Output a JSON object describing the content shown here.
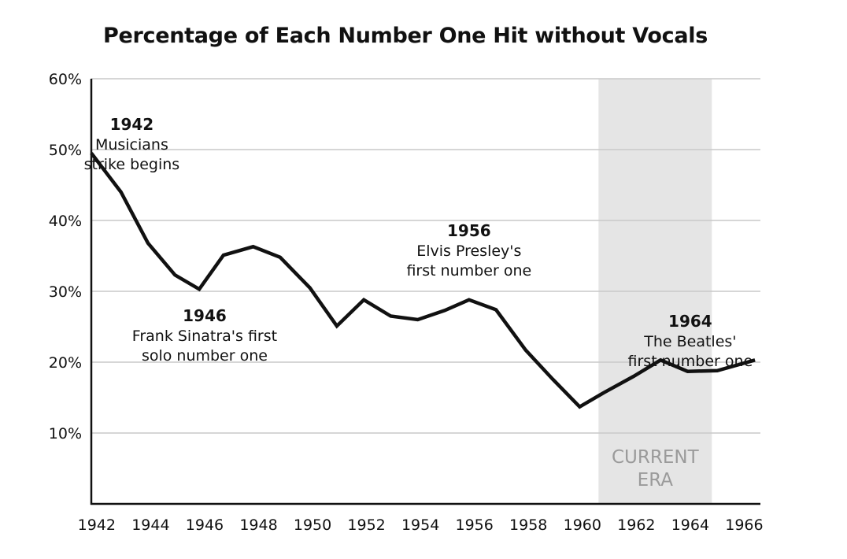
{
  "chart_data": {
    "type": "line",
    "title": "Percentage of Each Number One Hit without Vocals",
    "xlabel": "",
    "ylabel": "",
    "xlim": [
      1941.8,
      1966.6
    ],
    "ylim": [
      0,
      60
    ],
    "grid": "horizontal",
    "y_ticks": [
      {
        "value": 10,
        "label": "10%"
      },
      {
        "value": 20,
        "label": "20%"
      },
      {
        "value": 30,
        "label": "30%"
      },
      {
        "value": 40,
        "label": "40%"
      },
      {
        "value": 50,
        "label": "50%"
      },
      {
        "value": 60,
        "label": "60%"
      }
    ],
    "x_ticks": [
      {
        "value": 1942,
        "label": "1942"
      },
      {
        "value": 1944,
        "label": "1944"
      },
      {
        "value": 1946,
        "label": "1946"
      },
      {
        "value": 1948,
        "label": "1948"
      },
      {
        "value": 1950,
        "label": "1950"
      },
      {
        "value": 1952,
        "label": "1952"
      },
      {
        "value": 1954,
        "label": "1954"
      },
      {
        "value": 1956,
        "label": "1956"
      },
      {
        "value": 1958,
        "label": "1958"
      },
      {
        "value": 1960,
        "label": "1960"
      },
      {
        "value": 1962,
        "label": "1962"
      },
      {
        "value": 1964,
        "label": "1964"
      },
      {
        "value": 1966,
        "label": "1966"
      }
    ],
    "series": [
      {
        "color": "#111111",
        "points": [
          [
            1941.8,
            49.5
          ],
          [
            1942.9,
            44.0
          ],
          [
            1943.9,
            36.8
          ],
          [
            1944.9,
            32.3
          ],
          [
            1945.8,
            30.3
          ],
          [
            1946.7,
            35.1
          ],
          [
            1947.8,
            36.3
          ],
          [
            1948.8,
            34.8
          ],
          [
            1949.9,
            30.5
          ],
          [
            1950.9,
            25.1
          ],
          [
            1951.9,
            28.8
          ],
          [
            1952.9,
            26.5
          ],
          [
            1953.9,
            26.0
          ],
          [
            1954.9,
            27.3
          ],
          [
            1955.8,
            28.8
          ],
          [
            1956.8,
            27.4
          ],
          [
            1957.9,
            21.7
          ],
          [
            1958.9,
            17.6
          ],
          [
            1959.9,
            13.7
          ],
          [
            1960.8,
            15.7
          ],
          [
            1961.9,
            18.0
          ],
          [
            1962.9,
            20.3
          ],
          [
            1963.9,
            18.7
          ],
          [
            1965.0,
            18.8
          ],
          [
            1966.4,
            20.3
          ]
        ]
      }
    ],
    "shaded_region": {
      "x_start": 1960.6,
      "x_end": 1964.8,
      "color": "#e5e5e5",
      "label_lines": [
        "CURRENT",
        "ERA"
      ]
    },
    "annotations": [
      {
        "year_label": "1942",
        "lines": [
          "Musicians",
          "strike begins"
        ],
        "x": 1943.3,
        "y": 52.8
      },
      {
        "year_label": "1946",
        "lines": [
          "Frank Sinatra's first",
          "solo number one"
        ],
        "x": 1946.0,
        "y": 25.8
      },
      {
        "year_label": "1956",
        "lines": [
          "Elvis Presley's",
          "first number one"
        ],
        "x": 1955.8,
        "y": 37.8
      },
      {
        "year_label": "1964",
        "lines": [
          "The Beatles'",
          "first number one"
        ],
        "x": 1964.0,
        "y": 25.0
      }
    ]
  }
}
